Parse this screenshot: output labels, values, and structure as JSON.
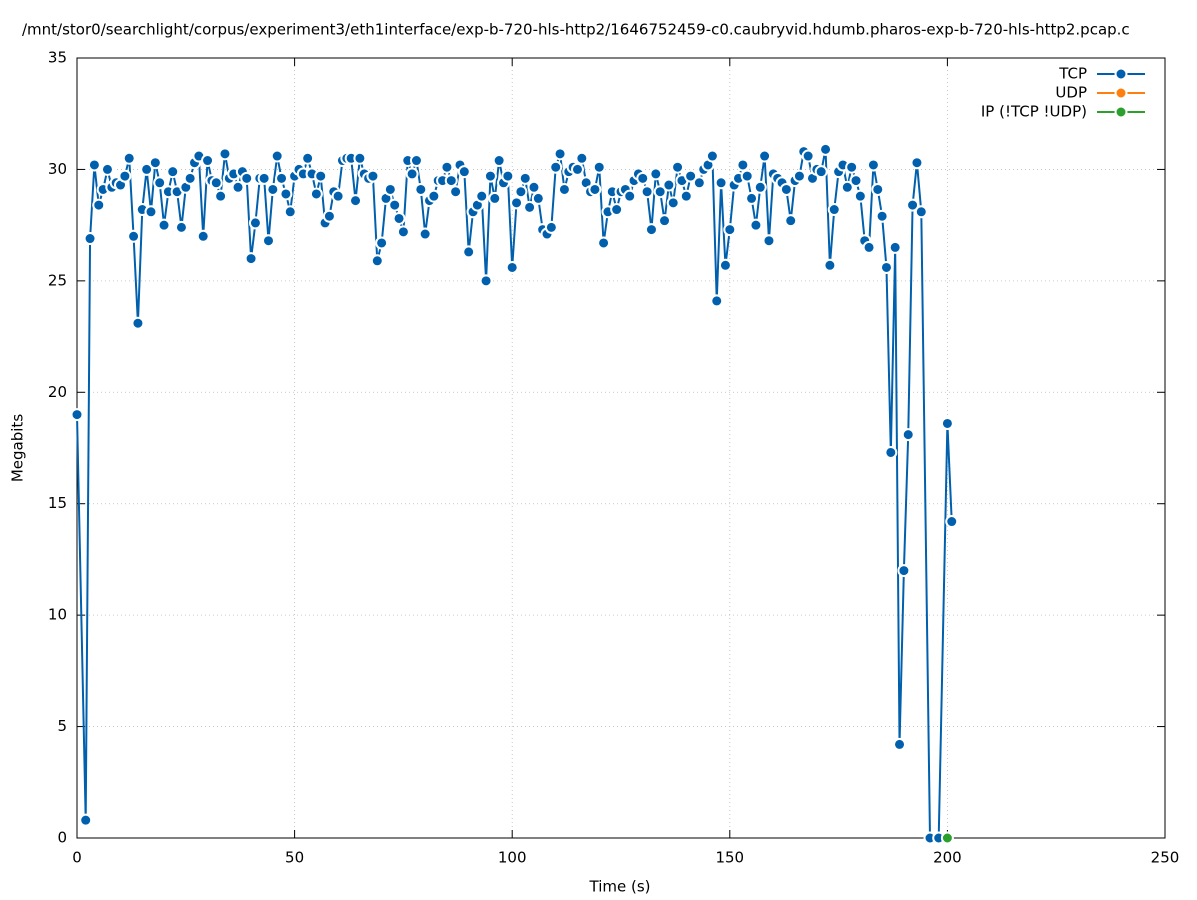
{
  "chart_data": {
    "type": "line",
    "title": "/mnt/stor0/searchlight/corpus/experiment3/eth1interface/exp-b-720-hls-http2/1646752459-c0.caubryvid.hdumb.pharos-exp-b-720-hls-http2.pcap.c",
    "x_label": "Time (s)",
    "y_label": "Megabits",
    "xlim": [
      0,
      250
    ],
    "ylim": [
      0,
      35
    ],
    "xticks": [
      0,
      50,
      100,
      150,
      200,
      250
    ],
    "yticks": [
      0,
      5,
      10,
      15,
      20,
      25,
      30,
      35
    ],
    "grid": true,
    "legend": "top-right",
    "series": [
      {
        "name": "TCP",
        "color": "#0060ad",
        "x": [
          0,
          2,
          3,
          4,
          5,
          6,
          7,
          8,
          9,
          10,
          11,
          12,
          13,
          14,
          15,
          16,
          17,
          18,
          19,
          20,
          21,
          22,
          23,
          24,
          25,
          26,
          27,
          28,
          29,
          30,
          31,
          32,
          33,
          34,
          35,
          36,
          37,
          38,
          39,
          40,
          41,
          42,
          43,
          44,
          45,
          46,
          47,
          48,
          49,
          50,
          51,
          52,
          53,
          54,
          55,
          56,
          57,
          58,
          59,
          60,
          61,
          62,
          63,
          64,
          65,
          66,
          67,
          68,
          69,
          70,
          71,
          72,
          73,
          74,
          75,
          76,
          77,
          78,
          79,
          80,
          81,
          82,
          83,
          84,
          85,
          86,
          87,
          88,
          89,
          90,
          91,
          92,
          93,
          94,
          95,
          96,
          97,
          98,
          99,
          100,
          101,
          102,
          103,
          104,
          105,
          106,
          107,
          108,
          109,
          110,
          111,
          112,
          113,
          114,
          115,
          116,
          117,
          118,
          119,
          120,
          121,
          122,
          123,
          124,
          125,
          126,
          127,
          128,
          129,
          130,
          131,
          132,
          133,
          134,
          135,
          136,
          137,
          138,
          139,
          140,
          141,
          143,
          144,
          145,
          146,
          147,
          148,
          149,
          150,
          151,
          152,
          153,
          154,
          155,
          156,
          157,
          158,
          159,
          160,
          161,
          162,
          163,
          164,
          165,
          166,
          167,
          168,
          169,
          170,
          171,
          172,
          173,
          174,
          175,
          176,
          177,
          178,
          179,
          180,
          181,
          182,
          183,
          184,
          185,
          186,
          187,
          188,
          189,
          190,
          191,
          192,
          193,
          194,
          196,
          198,
          200,
          201
        ],
        "values": [
          19.0,
          0.8,
          26.9,
          30.2,
          28.4,
          29.1,
          30.0,
          29.2,
          29.4,
          29.3,
          29.7,
          30.5,
          27.0,
          23.1,
          28.2,
          30.0,
          28.1,
          30.3,
          29.4,
          27.5,
          29.0,
          29.9,
          29.0,
          27.4,
          29.2,
          29.6,
          30.3,
          30.6,
          27.0,
          30.4,
          29.5,
          29.4,
          28.8,
          30.7,
          29.6,
          29.8,
          29.2,
          29.9,
          29.6,
          26.0,
          27.6,
          29.6,
          29.6,
          26.8,
          29.1,
          30.6,
          29.6,
          28.9,
          28.1,
          29.7,
          30.0,
          29.8,
          30.5,
          29.8,
          28.9,
          29.7,
          27.6,
          27.9,
          29.0,
          28.8,
          30.4,
          30.5,
          30.5,
          28.6,
          30.5,
          29.8,
          29.6,
          29.7,
          25.9,
          26.7,
          28.7,
          29.1,
          28.4,
          27.8,
          27.2,
          30.4,
          29.8,
          30.4,
          29.1,
          27.1,
          28.6,
          28.8,
          29.5,
          29.5,
          30.1,
          29.5,
          29.0,
          30.2,
          29.9,
          26.3,
          28.1,
          28.4,
          28.8,
          25.0,
          29.7,
          28.7,
          30.4,
          29.4,
          29.7,
          25.6,
          28.5,
          29.0,
          29.6,
          28.3,
          29.2,
          28.7,
          27.3,
          27.1,
          27.4,
          30.1,
          30.7,
          29.1,
          29.9,
          30.1,
          30.0,
          30.5,
          29.4,
          29.0,
          29.1,
          30.1,
          26.7,
          28.1,
          29.0,
          28.2,
          29.0,
          29.1,
          28.8,
          29.5,
          29.8,
          29.6,
          29.0,
          27.3,
          29.8,
          29.0,
          27.7,
          29.3,
          28.5,
          30.1,
          29.5,
          28.8,
          29.7,
          29.4,
          30.0,
          30.2,
          30.6,
          24.1,
          29.4,
          25.7,
          27.3,
          29.3,
          29.6,
          30.2,
          29.7,
          28.7,
          27.5,
          29.2,
          30.6,
          26.8,
          29.8,
          29.6,
          29.4,
          29.1,
          27.7,
          29.5,
          29.7,
          30.8,
          30.6,
          29.6,
          30.0,
          29.9,
          30.9,
          25.7,
          28.2,
          29.9,
          30.2,
          29.2,
          30.1,
          29.5,
          28.8,
          26.8,
          26.5,
          30.2,
          29.1,
          27.9,
          25.6,
          17.3,
          26.5,
          4.2,
          12.0,
          18.1,
          28.4,
          30.3,
          28.1,
          0,
          0,
          18.6,
          14.2
        ]
      },
      {
        "name": "UDP",
        "color": "#ff7f0e",
        "x": [],
        "values": []
      },
      {
        "name": "IP (!TCP  !UDP)",
        "color": "#2ca02c",
        "x": [
          200
        ],
        "values": [
          0
        ]
      }
    ]
  }
}
